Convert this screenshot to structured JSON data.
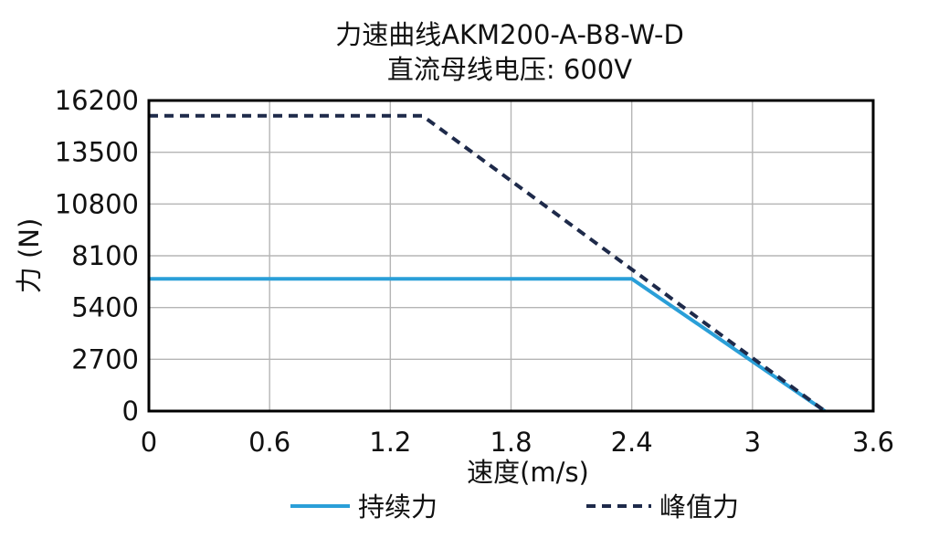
{
  "chart_data": {
    "type": "line",
    "title": "力速曲线AKM200-A-B8-W-D",
    "subtitle": "直流母线电压: 600V",
    "xlabel": "速度(m/s)",
    "ylabel": "力 (N)",
    "xlim": [
      0,
      3.6
    ],
    "ylim": [
      0,
      16200
    ],
    "x_ticks": [
      "0",
      "0.6",
      "1.2",
      "1.8",
      "2.4",
      "3",
      "3.6"
    ],
    "y_ticks": [
      "0",
      "2700",
      "5400",
      "8100",
      "10800",
      "13500",
      "16200"
    ],
    "x_tick_values": [
      0,
      0.6,
      1.2,
      1.8,
      2.4,
      3.0,
      3.6
    ],
    "y_tick_values": [
      0,
      2700,
      5400,
      8100,
      10800,
      13500,
      16200
    ],
    "grid": true,
    "legend_position": "bottom",
    "series": [
      {
        "name": "持续力",
        "color": "#2a9fd8",
        "style": "solid",
        "x": [
          0,
          2.4,
          3.36
        ],
        "y": [
          6900,
          6900,
          0
        ]
      },
      {
        "name": "峰值力",
        "color": "#1e2a4a",
        "style": "dashed",
        "x": [
          0,
          1.36,
          3.36
        ],
        "y": [
          15400,
          15400,
          0
        ]
      }
    ]
  }
}
